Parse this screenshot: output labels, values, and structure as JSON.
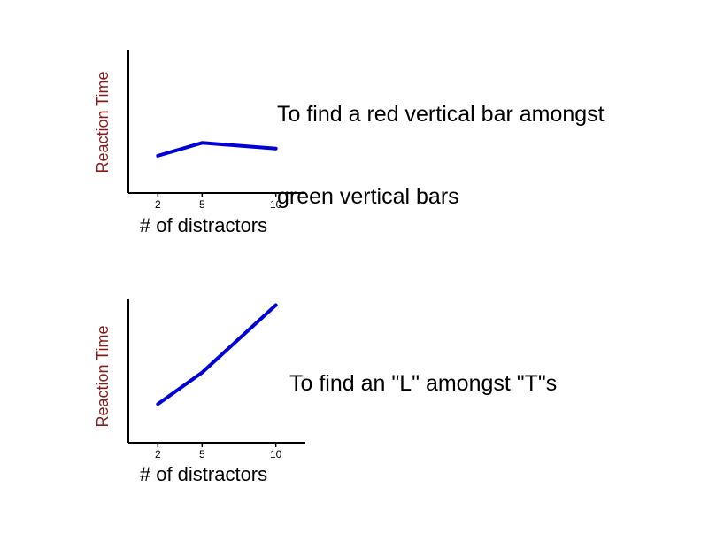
{
  "colors": {
    "axis": "#000000",
    "line": "#0000d8",
    "ylabel": "#8b1a1a",
    "text": "#000000",
    "background": "#ffffff"
  },
  "chart_data": [
    {
      "type": "line",
      "title": "To find a red vertical bar amongst\ngreen vertical bars",
      "title_lines": [
        "To find a red vertical bar amongst",
        "green vertical bars"
      ],
      "xlabel": "# of distractors",
      "ylabel": "Reaction Time",
      "x": [
        2,
        5,
        10
      ],
      "xticks": [
        2,
        5,
        10
      ],
      "tick_labels": [
        "2",
        "5",
        "10"
      ],
      "xlim": [
        0,
        12
      ],
      "ylim": [
        0,
        1
      ],
      "series": [
        {
          "values": [
            0.26,
            0.35,
            0.31
          ]
        }
      ],
      "grid": false,
      "legend": "none"
    },
    {
      "type": "line",
      "title": "To find an \"L\" amongst \"T\"s",
      "title_lines": [
        "To find an \"L\" amongst \"T\"s"
      ],
      "xlabel": "# of distractors",
      "ylabel": "Reaction Time",
      "x": [
        2,
        5,
        10
      ],
      "xticks": [
        2,
        5,
        10
      ],
      "tick_labels": [
        "2",
        "5",
        "10"
      ],
      "xlim": [
        0,
        12
      ],
      "ylim": [
        0,
        1
      ],
      "series": [
        {
          "values": [
            0.27,
            0.49,
            0.96
          ]
        }
      ],
      "grid": false,
      "legend": "none"
    }
  ]
}
